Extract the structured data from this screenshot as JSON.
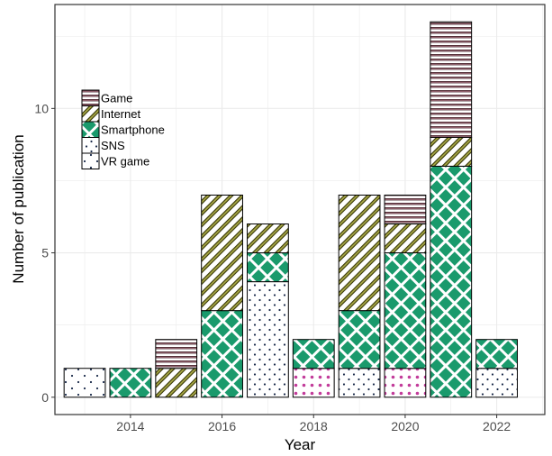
{
  "chart_data": {
    "type": "bar",
    "stacked": true,
    "title": "",
    "xlabel": "Year",
    "ylabel": "Number of publication",
    "x": [
      2013,
      2014,
      2015,
      2016,
      2017,
      2018,
      2019,
      2020,
      2021,
      2022
    ],
    "x_ticks": [
      2014,
      2016,
      2018,
      2020,
      2022
    ],
    "y_ticks": [
      0,
      5,
      10
    ],
    "xlim": [
      2012.35,
      2023.05
    ],
    "ylim": [
      -0.6,
      13.6
    ],
    "grid": true,
    "legend_position": "top-left inside",
    "series": [
      {
        "name": "VR game",
        "pattern": "sparse-dots",
        "fill": "#ffffff",
        "values": [
          1,
          0,
          0,
          0,
          0,
          0,
          0,
          0,
          0,
          0
        ]
      },
      {
        "name": "SNS",
        "pattern": "dots",
        "fill": "#ffffff",
        "values": [
          0,
          0,
          0,
          0,
          4,
          1,
          1,
          1,
          0,
          1
        ]
      },
      {
        "name": "Smartphone",
        "pattern": "crosshatch",
        "fill": "#1a9a6c",
        "values": [
          0,
          1,
          0,
          3,
          1,
          1,
          2,
          4,
          8,
          1
        ]
      },
      {
        "name": "Internet",
        "pattern": "diagonal",
        "fill": "#ffffff",
        "values": [
          0,
          0,
          1,
          4,
          1,
          0,
          4,
          1,
          1,
          0
        ]
      },
      {
        "name": "Game",
        "pattern": "horizontal",
        "fill": "#ffffff",
        "values": [
          0,
          0,
          1,
          0,
          0,
          0,
          0,
          1,
          4,
          0
        ]
      }
    ],
    "unlabeled_segments": [
      {
        "x": 2018,
        "y0": 0,
        "y1": 1,
        "pattern": "pink-dots"
      },
      {
        "x": 2020,
        "y0": 0,
        "y1": 1,
        "pattern": "pink-dots"
      }
    ],
    "colors": {
      "panel_border": "#333333",
      "grid": "#ebebeb",
      "bar_outline": "#000000",
      "smartphone_green": "#1a9a6c",
      "internet_olive": "#7a7a1a",
      "game_maroon": "#5a1f2a"
    }
  }
}
